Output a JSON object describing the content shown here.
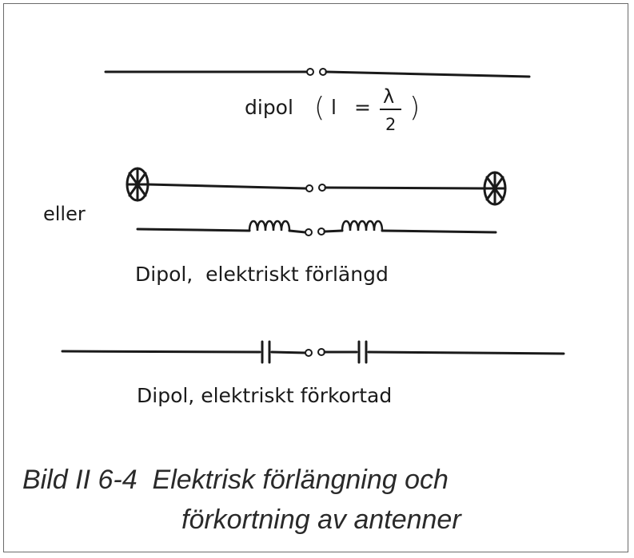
{
  "diagram": {
    "dipole_label": "dipol",
    "formula": {
      "open": "(",
      "var": "l",
      "eq": "=",
      "num": "λ",
      "den": "2",
      "close": ")"
    },
    "or_label": "eller",
    "extended_label": "Dipol,  elektriskt förlängd",
    "shortened_label": "Dipol, elektriskt förkortad"
  },
  "caption": {
    "line1": "Bild II 6-4  Elektrisk förlängning och",
    "line2": "förkortning av antenner"
  },
  "colors": {
    "ink": "#1a1a1a",
    "frame": "#6a6a6a",
    "caption": "#2a2a2a"
  }
}
